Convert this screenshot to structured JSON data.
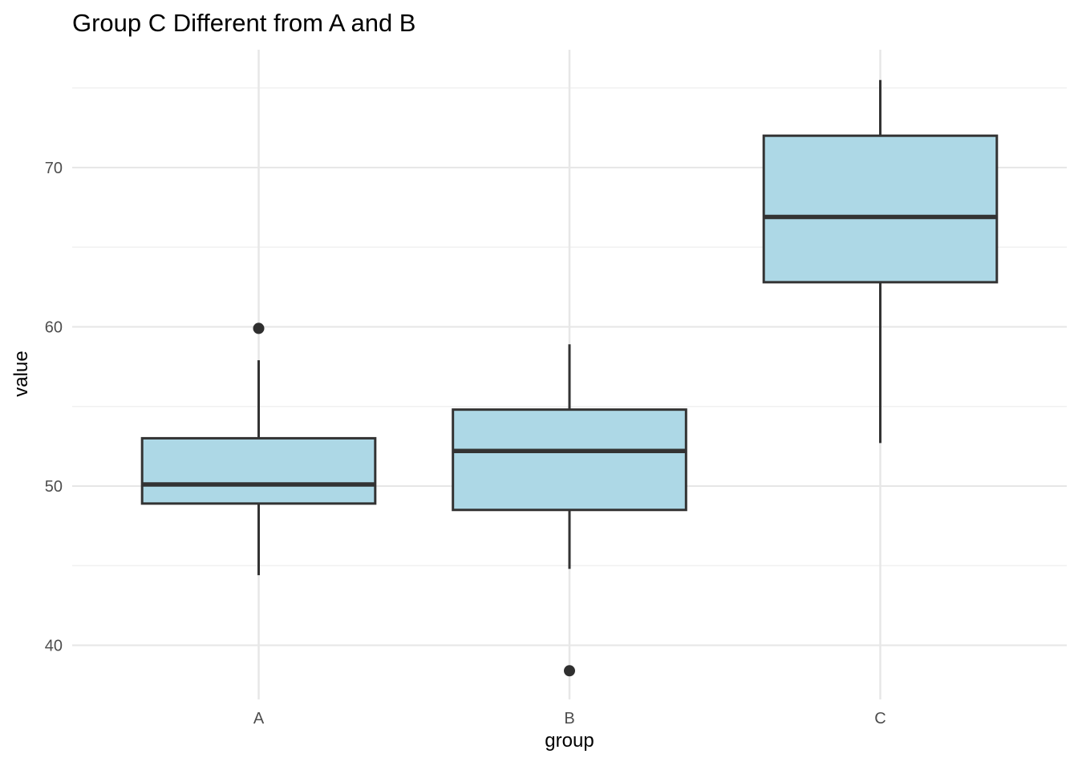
{
  "figure": {
    "title": "Group C Different from A and B",
    "x_axis_title": "group",
    "y_axis_title": "value"
  },
  "chart_data": {
    "type": "boxplot",
    "title": "Group C Different from A and B",
    "xlabel": "group",
    "ylabel": "value",
    "categories": [
      "A",
      "B",
      "C"
    ],
    "series": [
      {
        "name": "A",
        "whisker_low": 44.4,
        "q1": 48.9,
        "median": 50.1,
        "q3": 53.0,
        "whisker_high": 57.9,
        "outliers": [
          59.9
        ]
      },
      {
        "name": "B",
        "whisker_low": 44.8,
        "q1": 48.5,
        "median": 52.2,
        "q3": 54.8,
        "whisker_high": 58.9,
        "outliers": [
          38.4
        ]
      },
      {
        "name": "C",
        "whisker_low": 52.7,
        "q1": 62.8,
        "median": 66.9,
        "q3": 72.0,
        "whisker_high": 75.5,
        "outliers": []
      }
    ],
    "ylim": [
      36.6,
      77.4
    ],
    "y_major_ticks": [
      40,
      50,
      60,
      70
    ],
    "y_minor_ticks": [
      45,
      55,
      65,
      75
    ],
    "grid": true,
    "legend": "none",
    "box_width_fraction": 0.75,
    "colors": {
      "background": "#FFFFFF",
      "box_fill": "#ADD8E6",
      "box_border": "#333333",
      "median": "#333333",
      "whisker": "#333333",
      "outlier": "#2F2F2F",
      "grid_major": "#E6E6E6",
      "grid_minor": "#F0F0F0",
      "grid_vertical": "#E7E7E7",
      "tick_label": "#4D4D4D",
      "axis_title": "#000000",
      "title": "#000000"
    }
  }
}
